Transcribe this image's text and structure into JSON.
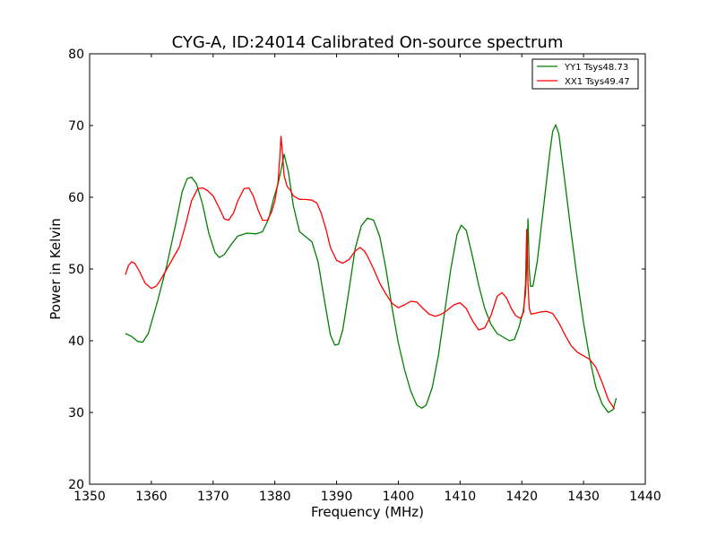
{
  "chart_data": {
    "type": "line",
    "title": "CYG-A, ID:24014 Calibrated On-source spectrum",
    "xlabel": "Frequency (MHz)",
    "ylabel": "Power in Kelvin",
    "xlim": [
      1350,
      1440
    ],
    "ylim": [
      20,
      80
    ],
    "xticks": [
      1350,
      1360,
      1370,
      1380,
      1390,
      1400,
      1410,
      1420,
      1430,
      1440
    ],
    "yticks": [
      20,
      30,
      40,
      50,
      60,
      70,
      80
    ],
    "grid": false,
    "legend_position": "top-right",
    "series": [
      {
        "name": "YY1 Tsys48.73",
        "color": "#008000",
        "x": [
          1355.8,
          1356.8,
          1357.8,
          1358.6,
          1359.5,
          1361.0,
          1362.5,
          1364.0,
          1365.0,
          1365.8,
          1366.5,
          1367.3,
          1368.3,
          1369.3,
          1370.3,
          1371.0,
          1371.8,
          1373.0,
          1374.0,
          1375.5,
          1377.0,
          1378.0,
          1379.0,
          1379.8,
          1380.5,
          1381.0,
          1381.5,
          1382.2,
          1383.0,
          1384.0,
          1385.0,
          1386.0,
          1387.0,
          1388.0,
          1389.0,
          1389.7,
          1390.3,
          1391.0,
          1392.0,
          1393.0,
          1394.0,
          1395.0,
          1396.0,
          1397.0,
          1398.0,
          1399.0,
          1400.0,
          1401.0,
          1402.0,
          1403.0,
          1403.8,
          1404.5,
          1405.5,
          1406.5,
          1407.5,
          1408.5,
          1409.5,
          1410.2,
          1411.0,
          1412.0,
          1413.0,
          1414.0,
          1415.0,
          1416.0,
          1417.0,
          1418.0,
          1418.8,
          1419.5,
          1420.2,
          1420.6,
          1420.8,
          1421.0,
          1421.2,
          1421.4,
          1421.8,
          1422.5,
          1423.5,
          1424.5,
          1425.0,
          1425.5,
          1426.0,
          1427.0,
          1428.0,
          1429.0,
          1430.0,
          1431.0,
          1432.0,
          1433.0,
          1434.0,
          1434.8,
          1435.3
        ],
        "values": [
          41.0,
          40.6,
          39.9,
          39.8,
          41.0,
          45.5,
          50.5,
          56.5,
          60.8,
          62.6,
          62.8,
          61.9,
          59.0,
          55.0,
          52.3,
          51.6,
          52.0,
          53.5,
          54.6,
          55.0,
          54.9,
          55.2,
          57.0,
          59.8,
          61.8,
          63.8,
          66.0,
          63.5,
          58.8,
          55.2,
          54.5,
          53.8,
          51.0,
          45.8,
          40.8,
          39.4,
          39.5,
          41.5,
          47.0,
          52.8,
          56.0,
          57.1,
          56.8,
          54.5,
          50.0,
          44.5,
          39.7,
          36.0,
          33.0,
          31.0,
          30.6,
          31.0,
          33.5,
          38.0,
          44.0,
          50.0,
          54.8,
          56.1,
          55.4,
          51.8,
          47.8,
          44.5,
          42.3,
          41.0,
          40.5,
          40.0,
          40.2,
          41.8,
          44.0,
          46.5,
          50.5,
          57.0,
          50.0,
          47.6,
          47.6,
          51.0,
          58.5,
          66.0,
          69.2,
          70.1,
          68.8,
          62.0,
          55.0,
          48.5,
          42.5,
          37.5,
          33.5,
          31.2,
          30.0,
          30.4,
          32.0
        ]
      },
      {
        "name": "XX1 Tsys49.47",
        "color": "#ff0000",
        "x": [
          1355.8,
          1356.3,
          1356.8,
          1357.3,
          1358.0,
          1359.0,
          1360.0,
          1360.8,
          1361.5,
          1362.5,
          1363.5,
          1364.5,
          1365.5,
          1366.5,
          1367.5,
          1368.3,
          1369.0,
          1370.0,
          1371.0,
          1371.8,
          1372.5,
          1373.3,
          1374.0,
          1375.0,
          1375.8,
          1376.5,
          1377.3,
          1378.0,
          1378.8,
          1379.5,
          1380.0,
          1380.5,
          1380.8,
          1381.0,
          1381.2,
          1381.5,
          1382.0,
          1382.5,
          1383.0,
          1384.0,
          1385.0,
          1386.0,
          1386.8,
          1387.5,
          1388.3,
          1389.0,
          1390.0,
          1391.0,
          1392.0,
          1393.0,
          1393.8,
          1394.5,
          1395.0,
          1396.0,
          1397.0,
          1398.0,
          1399.0,
          1400.0,
          1401.0,
          1402.0,
          1403.0,
          1404.0,
          1405.0,
          1406.0,
          1407.0,
          1408.0,
          1409.0,
          1410.0,
          1411.0,
          1412.0,
          1413.0,
          1414.0,
          1415.0,
          1416.0,
          1416.8,
          1417.5,
          1418.3,
          1419.0,
          1419.8,
          1420.3,
          1420.6,
          1420.8,
          1421.0,
          1421.2,
          1421.5,
          1422.0,
          1423.0,
          1424.0,
          1425.0,
          1426.0,
          1427.0,
          1428.0,
          1429.0,
          1430.0,
          1431.0,
          1432.0,
          1433.0,
          1434.0,
          1435.0
        ],
        "values": [
          49.2,
          50.5,
          51.0,
          50.8,
          49.8,
          48.0,
          47.3,
          47.6,
          48.5,
          50.0,
          51.5,
          53.0,
          56.0,
          59.5,
          61.2,
          61.3,
          61.0,
          60.2,
          58.5,
          57.0,
          56.8,
          57.8,
          59.5,
          61.2,
          61.3,
          60.2,
          58.2,
          56.8,
          56.8,
          58.0,
          59.5,
          62.0,
          65.5,
          68.5,
          66.5,
          63.0,
          61.5,
          61.0,
          60.2,
          59.7,
          59.7,
          59.6,
          59.2,
          57.8,
          55.5,
          53.0,
          51.2,
          50.8,
          51.3,
          52.5,
          53.0,
          52.5,
          51.8,
          50.0,
          48.0,
          46.5,
          45.2,
          44.6,
          45.0,
          45.5,
          45.4,
          44.5,
          43.7,
          43.4,
          43.7,
          44.3,
          45.0,
          45.3,
          44.5,
          42.8,
          41.5,
          41.8,
          43.5,
          46.2,
          46.7,
          46.0,
          44.5,
          43.5,
          43.1,
          44.0,
          48.0,
          55.5,
          48.0,
          44.5,
          43.7,
          43.8,
          44.0,
          44.1,
          43.8,
          42.5,
          40.8,
          39.3,
          38.4,
          37.9,
          37.4,
          36.3,
          34.2,
          31.8,
          30.5
        ]
      }
    ]
  }
}
